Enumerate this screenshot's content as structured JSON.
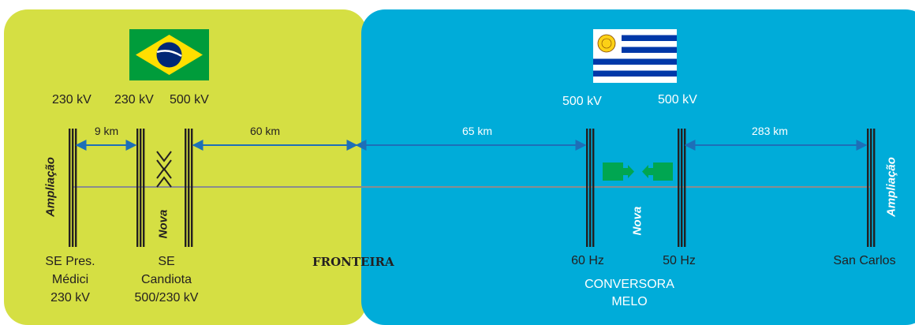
{
  "brazil": {
    "flag_name": "brazil-flag",
    "colors": {
      "panel": "#d5df43",
      "flag_green": "#009c3b",
      "flag_yellow": "#ffdf00",
      "flag_blue": "#002776"
    },
    "voltages": [
      "230 kV",
      "230 kV",
      "500 kV"
    ],
    "distance_9": "9 km",
    "distance_60": "60 km",
    "ampliacao": "Ampliação",
    "nova": "Nova",
    "stations": [
      {
        "lines": [
          "SE Pres.",
          "Médici",
          "230 kV"
        ]
      },
      {
        "lines": [
          "SE",
          "Candiota",
          "500/230 kV"
        ]
      }
    ]
  },
  "border": {
    "label": "FRONTEIRA"
  },
  "uruguay": {
    "flag_name": "uruguay-flag",
    "colors": {
      "panel": "#00acd9",
      "flag_blue": "#0038a8",
      "sun": "#fcd116"
    },
    "voltages": [
      "500 kV",
      "500 kV"
    ],
    "distance_65": "65 km",
    "distance_283": "283 km",
    "nova": "Nova",
    "ampliacao": "Ampliação",
    "hz_60": "60 Hz",
    "hz_50": "50 Hz",
    "san_carlos": "San Carlos",
    "converter": [
      "CONVERSORA",
      "MELO"
    ]
  },
  "lines": {
    "color": "#8a8c8e",
    "busbar": "#231f20",
    "arrow": "#1d6fb8",
    "converter_green": "#00a651"
  }
}
